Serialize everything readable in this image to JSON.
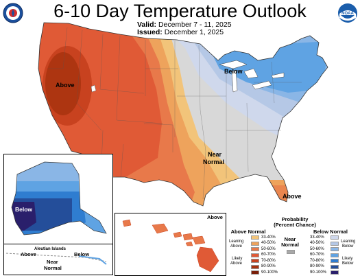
{
  "header": {
    "title": "6-10 Day Temperature Outlook",
    "valid_label": "Valid:",
    "valid_value": "December 7 - 11, 2025",
    "issued_label": "Issued:",
    "issued_value": "December 1, 2025"
  },
  "logos": {
    "left": "noaa-nws-seal",
    "right_text": "NOAA"
  },
  "map_labels": {
    "above_west": "Above",
    "below_greatlakes": "Below",
    "near_normal_line1": "Near",
    "near_normal_line2": "Normal",
    "above_florida": "Above",
    "alaska_below": "Below",
    "alaska_above": "Above",
    "alaska_near_line1": "Near",
    "alaska_near_line2": "Normal",
    "alaska_below2": "Below",
    "aleutian": "Aleutian Islands",
    "hawaii_above": "Above"
  },
  "legend": {
    "title_line1": "Probability",
    "title_line2": "(Percent Chance)",
    "above_header": "Above Normal",
    "below_header": "Below Normal",
    "near_header_line1": "Near",
    "near_header_line2": "Normal",
    "leaning_above_1": "Leaning",
    "leaning_above_2": "Above",
    "likely_above_1": "Likely",
    "likely_above_2": "Above",
    "leaning_below_1": "Leaning",
    "leaning_below_2": "Below",
    "likely_below_1": "Likely",
    "likely_below_2": "Below",
    "ranges": [
      "33-40%",
      "40-50%",
      "50-60%",
      "60-70%",
      "70-80%",
      "80-90%",
      "90-100%"
    ],
    "above_colors": [
      "#f2c47a",
      "#eea35c",
      "#e8794a",
      "#e05a36",
      "#c8421f",
      "#a8320f",
      "#7a1e08"
    ],
    "below_colors": [
      "#cfd8ec",
      "#b5c8e6",
      "#8ab6e6",
      "#5fa3e3",
      "#2f7dd0",
      "#244e9a",
      "#2a1f6b"
    ],
    "near_color": "#a8a8a8"
  }
}
